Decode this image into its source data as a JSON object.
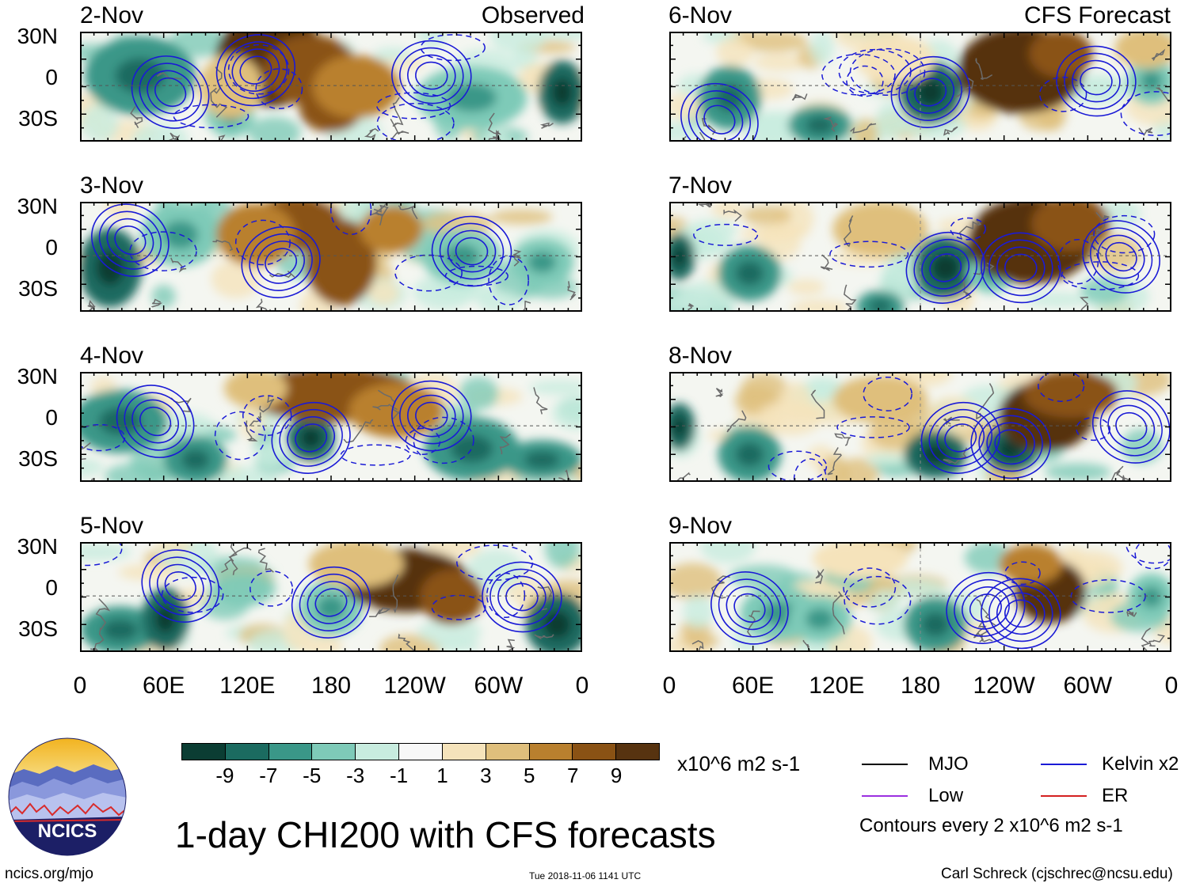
{
  "panels_left": {
    "title": "Observed",
    "dates": [
      "2-Nov",
      "3-Nov",
      "4-Nov",
      "5-Nov"
    ]
  },
  "panels_right": {
    "title": "CFS Forecast",
    "dates": [
      "6-Nov",
      "7-Nov",
      "8-Nov",
      "9-Nov"
    ]
  },
  "lat_labels": [
    "30N",
    "0",
    "30S"
  ],
  "lon_labels": [
    "0",
    "60E",
    "120E",
    "180",
    "120W",
    "60W",
    "0"
  ],
  "colorbar": {
    "unit": "x10^6 m2 s-1",
    "ticks": [
      "-9",
      "-7",
      "-5",
      "-3",
      "-1",
      "1",
      "3",
      "5",
      "7",
      "9"
    ],
    "colors": [
      "#0b3d33",
      "#1b6b60",
      "#3a9788",
      "#7ecab8",
      "#c8ecdf",
      "#f8f8f8",
      "#f5e3bb",
      "#dfbf7c",
      "#b9802e",
      "#8a5214",
      "#573310"
    ]
  },
  "legend": {
    "mjo": "MJO",
    "kelvin": "Kelvin x2",
    "low": "Low",
    "er": "ER",
    "contours": "Contours every 2 x10^6 m2 s-1",
    "colors": {
      "mjo": "#000000",
      "kelvin": "#1a1ad6",
      "low": "#9b30e0",
      "er": "#d42020"
    }
  },
  "main_title": "1-day CHI200 with CFS forecasts",
  "logo_text": "NCICS",
  "footer": {
    "url": "ncics.org/mjo",
    "timestamp": "Tue 2018-11-06 1141 UTC",
    "author": "Carl Schreck (cjschrec@ncsu.edu)"
  }
}
